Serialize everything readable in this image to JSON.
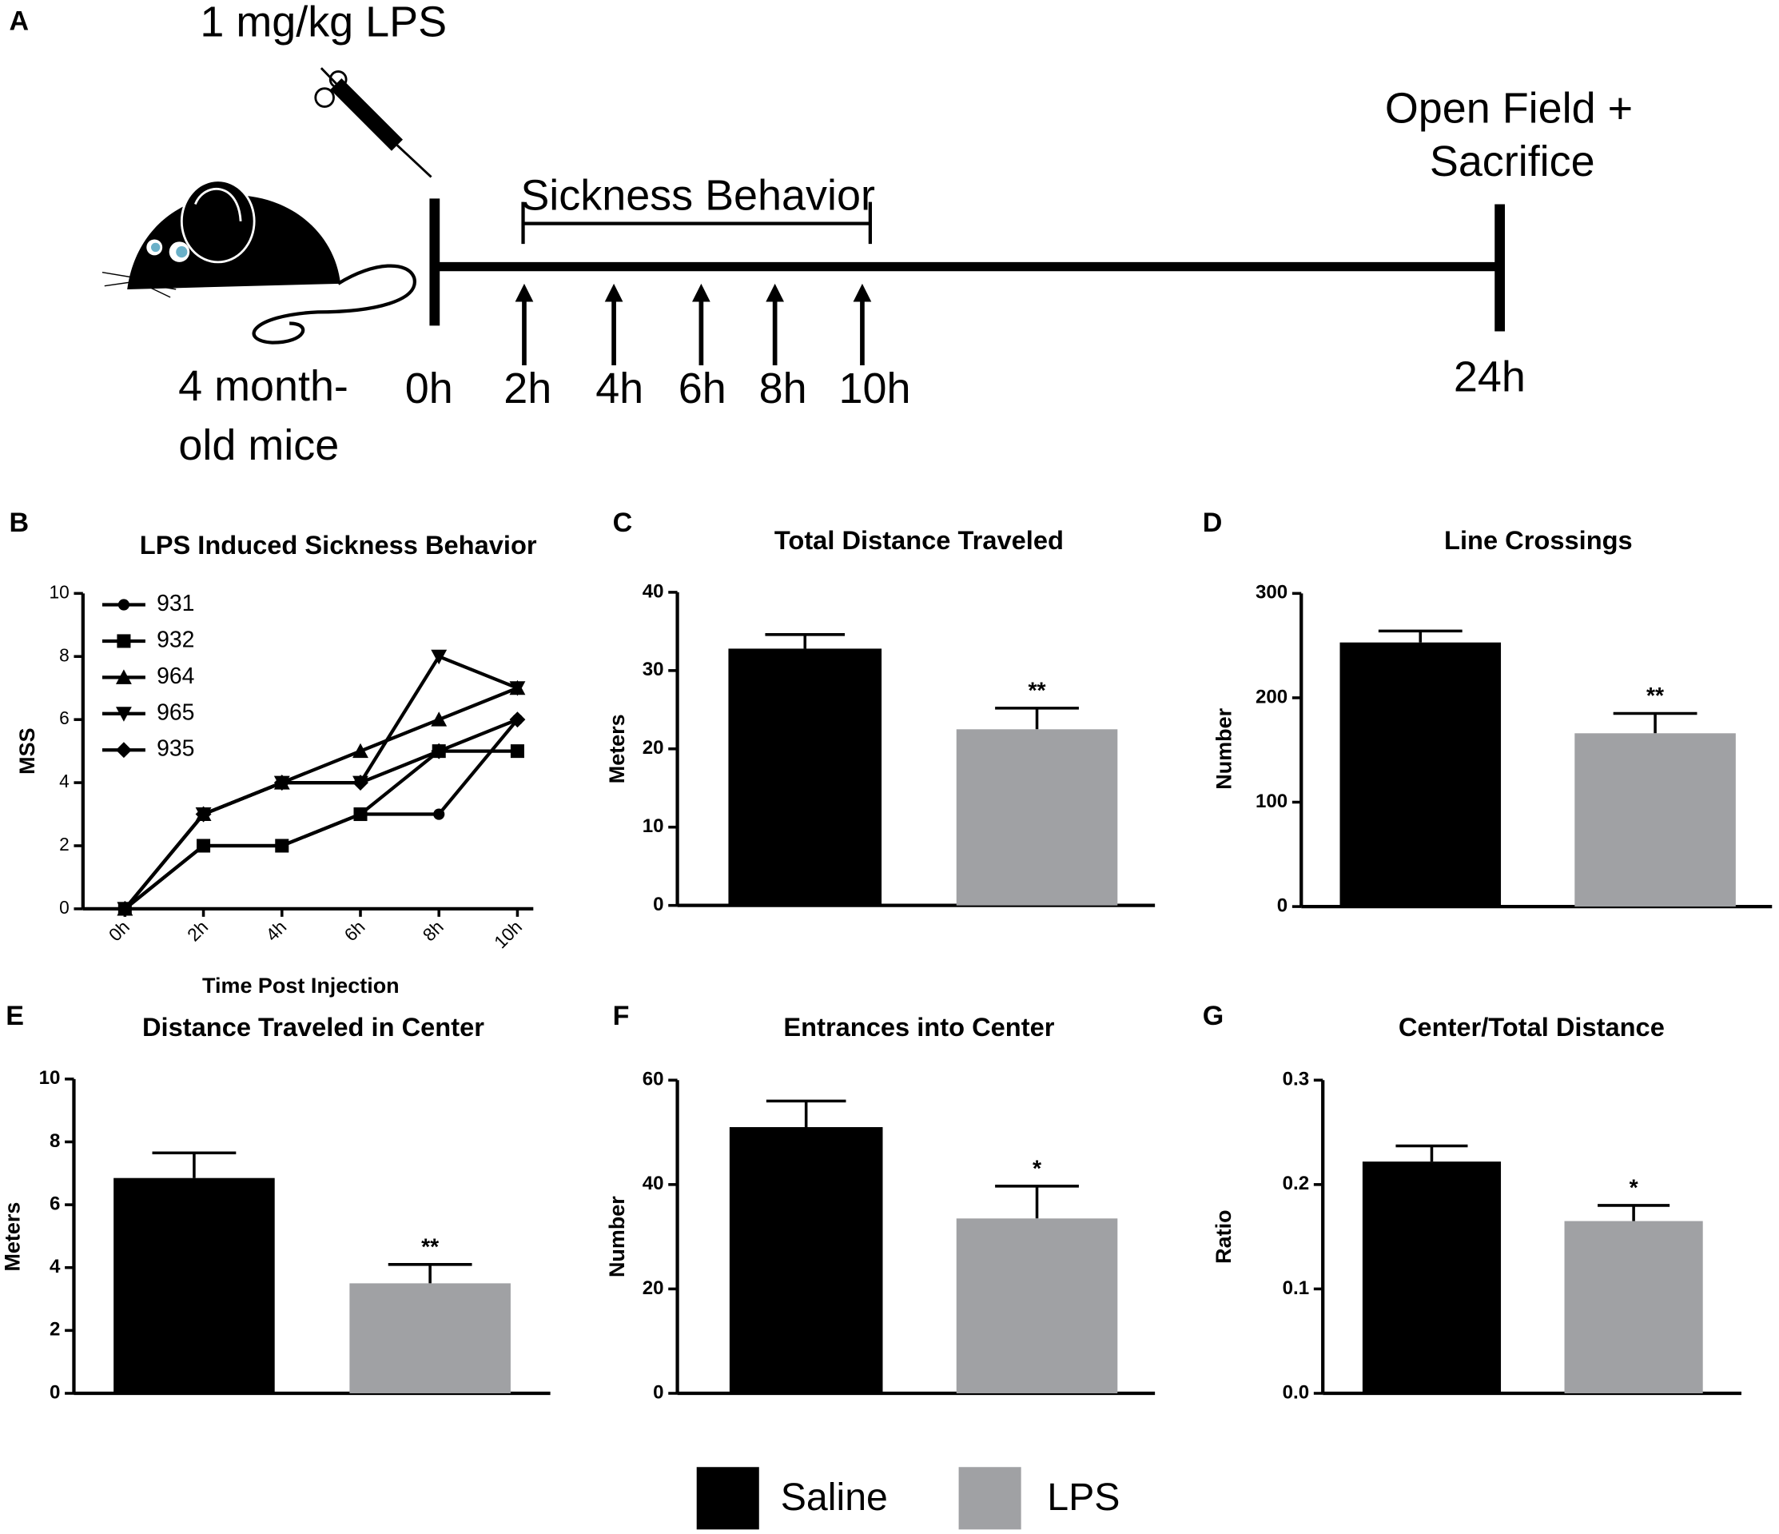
{
  "timeline": {
    "panel": "A",
    "dose": "1 mg/kg LPS",
    "subject": [
      "4 month-",
      "old mice"
    ],
    "bracket": "Sickness Behavior",
    "endpoint": [
      "Open Field +",
      "Sacrifice"
    ],
    "times": [
      "0h",
      "2h",
      "4h",
      "6h",
      "8h",
      "10h",
      "24h"
    ]
  },
  "legend": {
    "items": [
      {
        "name": "Saline",
        "color": "#000000"
      },
      {
        "name": "LPS",
        "color": "#a0a1a4"
      }
    ]
  },
  "chart_data": [
    {
      "type": "line",
      "panel": "B",
      "title": "LPS Induced Sickness Behavior",
      "xlabel": "Time Post Injection",
      "ylabel": "MSS",
      "categories": [
        "0h",
        "2h",
        "4h",
        "6h",
        "8h",
        "10h"
      ],
      "ylim": [
        0,
        10
      ],
      "yticks": [
        0,
        2,
        4,
        6,
        8,
        10
      ],
      "series": [
        {
          "name": "931",
          "color": "#000000",
          "marker": "circle",
          "values": [
            0,
            2,
            2,
            3,
            3,
            6
          ]
        },
        {
          "name": "932",
          "color": "#000000",
          "marker": "square",
          "values": [
            0,
            2,
            2,
            3,
            5,
            5
          ]
        },
        {
          "name": "964",
          "color": "#000000",
          "marker": "triangle-up",
          "values": [
            0,
            3,
            4,
            5,
            6,
            7
          ]
        },
        {
          "name": "965",
          "color": "#000000",
          "marker": "triangle-down",
          "values": [
            0,
            3,
            4,
            4,
            8,
            7
          ]
        },
        {
          "name": "935",
          "color": "#000000",
          "marker": "diamond",
          "values": [
            0,
            3,
            4,
            4,
            5,
            6
          ]
        }
      ]
    },
    {
      "type": "bar",
      "panel": "C",
      "title": "Total Distance Traveled",
      "ylabel": "Meters",
      "values": [
        32.8,
        22.5
      ],
      "errors": [
        1.8,
        2.7
      ],
      "annotation": "**",
      "ylim": [
        0,
        40
      ],
      "yticks": [
        0,
        10,
        20,
        30,
        40
      ]
    },
    {
      "type": "bar",
      "panel": "D",
      "title": "Line Crossings",
      "ylabel": "Number",
      "values": [
        253,
        166
      ],
      "errors": [
        11,
        19
      ],
      "annotation": "**",
      "ylim": [
        0,
        300
      ],
      "yticks": [
        0,
        100,
        200,
        300
      ]
    },
    {
      "type": "bar",
      "panel": "E",
      "title": "Distance Traveled in Center",
      "ylabel": "Meters",
      "values": [
        6.85,
        3.5
      ],
      "errors": [
        0.8,
        0.6
      ],
      "annotation": "**",
      "ylim": [
        0,
        10
      ],
      "yticks": [
        0,
        2,
        4,
        6,
        8,
        10
      ]
    },
    {
      "type": "bar",
      "panel": "F",
      "title": "Entrances into Center",
      "ylabel": "Number",
      "values": [
        51,
        33.5
      ],
      "errors": [
        5,
        6.2
      ],
      "annotation": "*",
      "ylim": [
        0,
        60
      ],
      "yticks": [
        0,
        20,
        40,
        60
      ]
    },
    {
      "type": "bar",
      "panel": "G",
      "title": "Center/Total Distance",
      "ylabel": "Ratio",
      "values": [
        0.222,
        0.165
      ],
      "errors": [
        0.015,
        0.015
      ],
      "annotation": "*",
      "ylim": [
        0,
        0.3
      ],
      "yticks": [
        {
          "value": 0,
          "label": "0.0"
        },
        0.1,
        0.2,
        0.3
      ]
    }
  ]
}
